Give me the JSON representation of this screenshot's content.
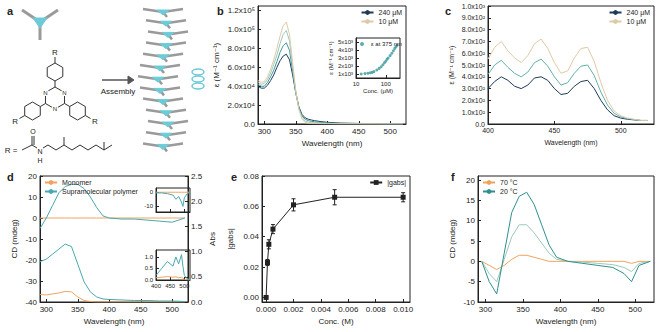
{
  "diagram": {
    "title": "a",
    "arrow_label": "Assembly",
    "core_atom": "N",
    "substituent": "R",
    "substituent_label": "R =",
    "amide_atoms": [
      "O",
      "N",
      "H"
    ]
  },
  "chart_data": [
    {
      "type": "line",
      "title": "b",
      "x_label": "Wavelength (nm)",
      "y_label": "ε (M⁻¹ cm⁻¹)",
      "legend": "upper right",
      "grid": false,
      "x": [
        290,
        295,
        300,
        305,
        310,
        315,
        320,
        325,
        330,
        335,
        340,
        345,
        350,
        355,
        360,
        365,
        370,
        375,
        380,
        390,
        400,
        420,
        450,
        480,
        520
      ],
      "xlim": [
        290,
        525
      ],
      "xticks": [
        300,
        350,
        400,
        450,
        500
      ],
      "ylim": [
        0,
        125000
      ],
      "yticks": [
        {
          "value": 0,
          "label": "0.0"
        },
        {
          "value": 20000,
          "label": "2.0x10⁴"
        },
        {
          "value": 40000,
          "label": "4.0x10⁴"
        },
        {
          "value": 60000,
          "label": "6.0x10⁴"
        },
        {
          "value": 80000,
          "label": "8.0x10⁴"
        },
        {
          "value": 100000,
          "label": "1.0x10⁵"
        },
        {
          "value": 120000,
          "label": "1.2x10⁵"
        }
      ],
      "series": [
        {
          "name": "240 μM",
          "color": "#1d3a5a",
          "values": [
            40000,
            38000,
            38000,
            41000,
            46000,
            52000,
            60000,
            67000,
            72000,
            74000,
            68000,
            52000,
            33000,
            18000,
            10000,
            6500,
            5000,
            4200,
            3500,
            2500,
            1800,
            1000,
            600,
            400,
            300
          ]
        },
        {
          "color": "#3f9a9e",
          "values": [
            42000,
            40000,
            40000,
            44000,
            50000,
            57000,
            66000,
            76000,
            83000,
            86000,
            78000,
            56000,
            33000,
            17000,
            8500,
            5000,
            3500,
            2800,
            2300,
            1700,
            1200,
            600,
            400,
            200,
            100
          ]
        },
        {
          "color": "#9cc9b8",
          "values": [
            44000,
            42000,
            43000,
            47000,
            54000,
            63000,
            73000,
            85000,
            95000,
            99000,
            88000,
            61000,
            34000,
            16000,
            7000,
            3000,
            2000,
            1500,
            1200,
            900,
            600,
            300,
            200,
            100,
            50
          ]
        },
        {
          "name": "10 μM",
          "color": "#e0c9a6",
          "values": [
            46000,
            44000,
            45000,
            50000,
            58000,
            68000,
            80000,
            93000,
            104000,
            108000,
            95000,
            65000,
            35000,
            15000,
            5000,
            1500,
            800,
            500,
            400,
            300,
            200,
            100,
            50,
            0,
            0
          ]
        }
      ]
    },
    {
      "type": "scatter",
      "x_label": "Conc. (μM)",
      "y_label": "ε (M⁻¹ cm⁻¹)",
      "legend": "upper left",
      "log": "x",
      "grid": false,
      "x": [
        15,
        20,
        25,
        30,
        35,
        40,
        50,
        60,
        70,
        80,
        90,
        100,
        110,
        120,
        140,
        160,
        180,
        200,
        220,
        240
      ],
      "xlim": [
        10,
        300
      ],
      "xticks": [
        10,
        100
      ],
      "ylim": [
        500,
        5500
      ],
      "yticks": [
        {
          "value": 1000,
          "label": "1x10³"
        },
        {
          "value": 2000,
          "label": "2x10³"
        },
        {
          "value": 3000,
          "label": "3x10³"
        },
        {
          "value": 4000,
          "label": "4x10³"
        },
        {
          "value": 5000,
          "label": "5x10³"
        }
      ],
      "series": [
        {
          "name": "ε at 375 nm",
          "color": "#3a9a9a",
          "marker": "circle",
          "values": [
            1000,
            1050,
            1100,
            1150,
            1200,
            1300,
            1500,
            1700,
            1900,
            2150,
            2400,
            2600,
            2850,
            3000,
            3300,
            3600,
            3900,
            4200,
            4400,
            4600
          ]
        }
      ]
    },
    {
      "type": "line",
      "title": "c",
      "x_label": "Wavelength (nm)",
      "y_label": "ε (M⁻¹ cm⁻¹)",
      "legend": "upper right",
      "grid": false,
      "x": [
        400,
        405,
        410,
        415,
        420,
        425,
        430,
        435,
        440,
        445,
        450,
        455,
        460,
        465,
        470,
        475,
        480,
        485,
        490,
        495,
        500,
        505,
        510,
        515,
        520
      ],
      "xlim": [
        400,
        525
      ],
      "xticks": [
        400,
        450,
        500
      ],
      "ylim": [
        0,
        1000
      ],
      "yticks": [
        {
          "value": 0,
          "label": "0.0"
        },
        {
          "value": 100,
          "label": "1.0x10²"
        },
        {
          "value": 200,
          "label": "2.0x10²"
        },
        {
          "value": 300,
          "label": "3.0x10²"
        },
        {
          "value": 400,
          "label": "4.0x10²"
        },
        {
          "value": 500,
          "label": "5.0x10²"
        },
        {
          "value": 600,
          "label": "6.0x10²"
        },
        {
          "value": 700,
          "label": "7.0x10²"
        },
        {
          "value": 800,
          "label": "8.0x10²"
        },
        {
          "value": 900,
          "label": "9.0x10²"
        },
        {
          "value": 1000,
          "label": "1.0x10³"
        }
      ],
      "series": [
        {
          "name": "240 μM",
          "color": "#1d3a5a",
          "values": [
            300,
            360,
            400,
            370,
            320,
            300,
            330,
            390,
            400,
            370,
            300,
            250,
            260,
            320,
            360,
            370,
            300,
            200,
            120,
            70,
            50,
            40,
            35,
            30,
            30
          ]
        },
        {
          "color": "#5fb0ae",
          "values": [
            420,
            500,
            540,
            480,
            430,
            400,
            440,
            520,
            550,
            490,
            400,
            330,
            350,
            430,
            490,
            500,
            410,
            270,
            160,
            90,
            60,
            45,
            38,
            30,
            30
          ]
        },
        {
          "name": "10 μM",
          "color": "#e0c9a6",
          "values": [
            550,
            650,
            700,
            620,
            560,
            520,
            580,
            680,
            720,
            640,
            520,
            430,
            450,
            560,
            640,
            650,
            530,
            350,
            200,
            110,
            70,
            50,
            40,
            30,
            30
          ]
        }
      ]
    },
    {
      "type": "line",
      "title": "d",
      "x_label": "Wavelength (nm)",
      "y_label": "CD (mdeg)",
      "y2_label": "Abs",
      "legend": "upper left",
      "grid": false,
      "x": [
        290,
        300,
        310,
        320,
        330,
        340,
        350,
        360,
        370,
        380,
        390,
        400,
        420,
        440,
        460,
        480,
        500,
        520
      ],
      "xlim": [
        290,
        525
      ],
      "xticks": [
        300,
        350,
        400,
        450,
        500
      ],
      "ylim": [
        -40,
        20
      ],
      "yticks": [
        -40,
        -30,
        -20,
        -10,
        0,
        10,
        20
      ],
      "y2lim": [
        0,
        2.5
      ],
      "y2ticks": [
        {
          "value": 0,
          "label": "0.0"
        },
        0.5,
        {
          "value": 1,
          "label": "1.0"
        },
        1.5,
        {
          "value": 2,
          "label": "2.0"
        },
        2.5
      ],
      "series": [
        {
          "name": "Monomer",
          "color": "#f0a35e",
          "values": [
            0,
            0,
            0,
            0,
            0,
            0,
            0,
            0,
            0,
            0,
            0,
            0,
            0,
            0,
            0,
            0,
            0,
            0
          ]
        },
        {
          "name": "Supramolecular polymer",
          "color": "#4aa8b0",
          "values": [
            -5,
            0,
            6,
            12,
            15,
            16,
            16,
            14,
            10,
            5,
            1,
            0,
            -0.5,
            -0.5,
            -1,
            -1.5,
            -2,
            0
          ]
        },
        {
          "color": "#f0a35e",
          "axis": "y2",
          "values": [
            0.15,
            0.14,
            0.16,
            0.18,
            0.21,
            0.2,
            0.1,
            0.03,
            0.01,
            0,
            0,
            0,
            0,
            0,
            0,
            0,
            0,
            0
          ]
        },
        {
          "color": "#4aa8b0",
          "axis": "y2",
          "values": [
            0.8,
            0.85,
            0.95,
            1.05,
            1.15,
            1.1,
            0.75,
            0.4,
            0.2,
            0.1,
            0.06,
            0.05,
            0.04,
            0.03,
            0.03,
            0.02,
            0.02,
            0.01
          ]
        }
      ]
    },
    {
      "type": "line",
      "tick_labels": "y",
      "grid": false,
      "x": [
        400,
        420,
        440,
        460,
        470,
        480,
        490,
        495,
        500,
        510,
        520
      ],
      "xlim": [
        400,
        520
      ],
      "xticks": [
        400,
        450,
        500
      ],
      "ylim": [
        -14,
        3
      ],
      "yticks": [
        -10,
        0
      ],
      "series": [
        {
          "color": "#f0a35e",
          "values": [
            0,
            0,
            0,
            0,
            0,
            0,
            0,
            0,
            0,
            0,
            0
          ]
        },
        {
          "color": "#4aa8b0",
          "values": [
            -0.5,
            -0.5,
            -1,
            -2,
            -5,
            -3,
            -7,
            -10,
            -4,
            -1,
            0
          ]
        }
      ]
    },
    {
      "type": "line",
      "grid": false,
      "x": [
        400,
        420,
        440,
        460,
        470,
        480,
        490,
        495,
        500,
        510,
        520
      ],
      "xlim": [
        400,
        520
      ],
      "xticks": [
        400,
        450,
        500
      ],
      "ylim": [
        0,
        1.3
      ],
      "yticks": [
        {
          "value": 0,
          "label": "0.0"
        },
        0.5,
        {
          "value": 1,
          "label": "1.0"
        }
      ],
      "series": [
        {
          "color": "#f0a35e",
          "values": [
            0.1,
            0.12,
            0.15,
            0.12,
            0.14,
            0.1,
            0.12,
            0.08,
            0.03,
            0.01,
            0
          ]
        },
        {
          "color": "#4aa8b0",
          "values": [
            0.2,
            0.5,
            0.8,
            0.6,
            1.0,
            0.7,
            1.1,
            0.6,
            0.2,
            0.05,
            0.02
          ]
        }
      ]
    },
    {
      "type": "line",
      "title": "e",
      "x_label": "Conc. (M)",
      "y_label": "|gabs|",
      "legend": "upper right",
      "grid": false,
      "x": [
        0,
        0.0001,
        0.0002,
        0.0005,
        0.002,
        0.005,
        0.01
      ],
      "xlim": [
        -0.0003,
        0.0105
      ],
      "xticks": [
        {
          "value": 0,
          "label": "0.000"
        },
        {
          "value": 0.002,
          "label": "0.002"
        },
        {
          "value": 0.004,
          "label": "0.004"
        },
        {
          "value": 0.006,
          "label": "0.006"
        },
        {
          "value": 0.008,
          "label": "0.008"
        },
        {
          "value": 0.01,
          "label": "0.010"
        }
      ],
      "ylim": [
        -0.003,
        0.08
      ],
      "yticks": [
        {
          "value": 0,
          "label": "0.00"
        },
        {
          "value": 0.02,
          "label": "0.02"
        },
        {
          "value": 0.04,
          "label": "0.04"
        },
        {
          "value": 0.06,
          "label": "0.06"
        },
        {
          "value": 0.08,
          "label": "0.08"
        }
      ],
      "series": [
        {
          "name": "|gabs|",
          "color": "#222222",
          "marker": "square",
          "values": [
            0,
            0.023,
            0.035,
            0.045,
            0.061,
            0.066,
            0.066
          ],
          "errors": [
            0,
            0.002,
            0.003,
            0.003,
            0.004,
            0.005,
            0.003
          ]
        }
      ]
    },
    {
      "type": "line",
      "title": "f",
      "x_label": "Wavelength (nm)",
      "y_label": "CD (mdeg)",
      "legend": "upper left",
      "grid": false,
      "x": [
        295,
        305,
        315,
        325,
        335,
        345,
        355,
        365,
        375,
        385,
        395,
        410,
        430,
        450,
        470,
        485,
        495,
        505,
        520
      ],
      "xlim": [
        290,
        525
      ],
      "xticks": [
        300,
        350,
        400,
        450,
        500
      ],
      "ylim": [
        -10,
        21
      ],
      "yticks": [
        -10,
        -5,
        0,
        5,
        10,
        15,
        20
      ],
      "series": [
        {
          "name": "70 °C",
          "color": "#f0a35e",
          "values": [
            0,
            -1,
            -2,
            -1,
            0.5,
            1.5,
            1.5,
            1,
            0.5,
            0,
            0,
            0,
            0,
            0,
            0,
            0,
            -0.5,
            0,
            0
          ]
        },
        {
          "color": "#9cc9b8",
          "values": [
            0,
            -3,
            -5,
            0.5,
            6,
            9,
            9,
            7,
            4.5,
            2,
            0.5,
            0,
            -0.2,
            -0.5,
            -0.8,
            -1.5,
            -2.5,
            -0.5,
            0
          ]
        },
        {
          "name": "20 °C",
          "color": "#2f8f8f",
          "values": [
            0,
            -5,
            -8,
            2,
            12,
            16,
            17,
            14,
            9,
            4,
            1,
            0,
            -0.5,
            -1,
            -1.5,
            -3,
            -5,
            -1,
            0
          ]
        }
      ]
    }
  ]
}
